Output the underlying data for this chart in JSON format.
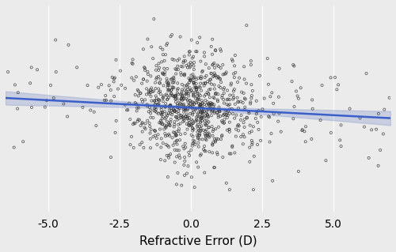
{
  "title": "",
  "xlabel": "Refractive Error (D)",
  "ylabel": "",
  "xlim": [
    -6.5,
    7.0
  ],
  "ylim": [
    -3.8,
    3.8
  ],
  "xticks": [
    -5.0,
    -2.5,
    0.0,
    2.5,
    5.0
  ],
  "xtick_labels": [
    "-5.0",
    "-2.5",
    "0.0",
    "2.5",
    "5.0"
  ],
  "background_color": "#ebebeb",
  "grid_color": "#ffffff",
  "scatter_facecolor": "none",
  "scatter_edgecolor": "#333333",
  "scatter_marker": "o",
  "scatter_size": 5,
  "scatter_linewidth": 0.5,
  "scatter_alpha": 0.9,
  "line_color": "#3a5fc8",
  "line_width": 1.8,
  "ci_color": "#8899cc",
  "ci_alpha": 0.35,
  "slope": -0.055,
  "intercept": 0.04,
  "n_points": 1000,
  "seed": 42,
  "xlabel_fontsize": 11,
  "tick_fontsize": 10,
  "fig_facecolor": "#ebebeb"
}
